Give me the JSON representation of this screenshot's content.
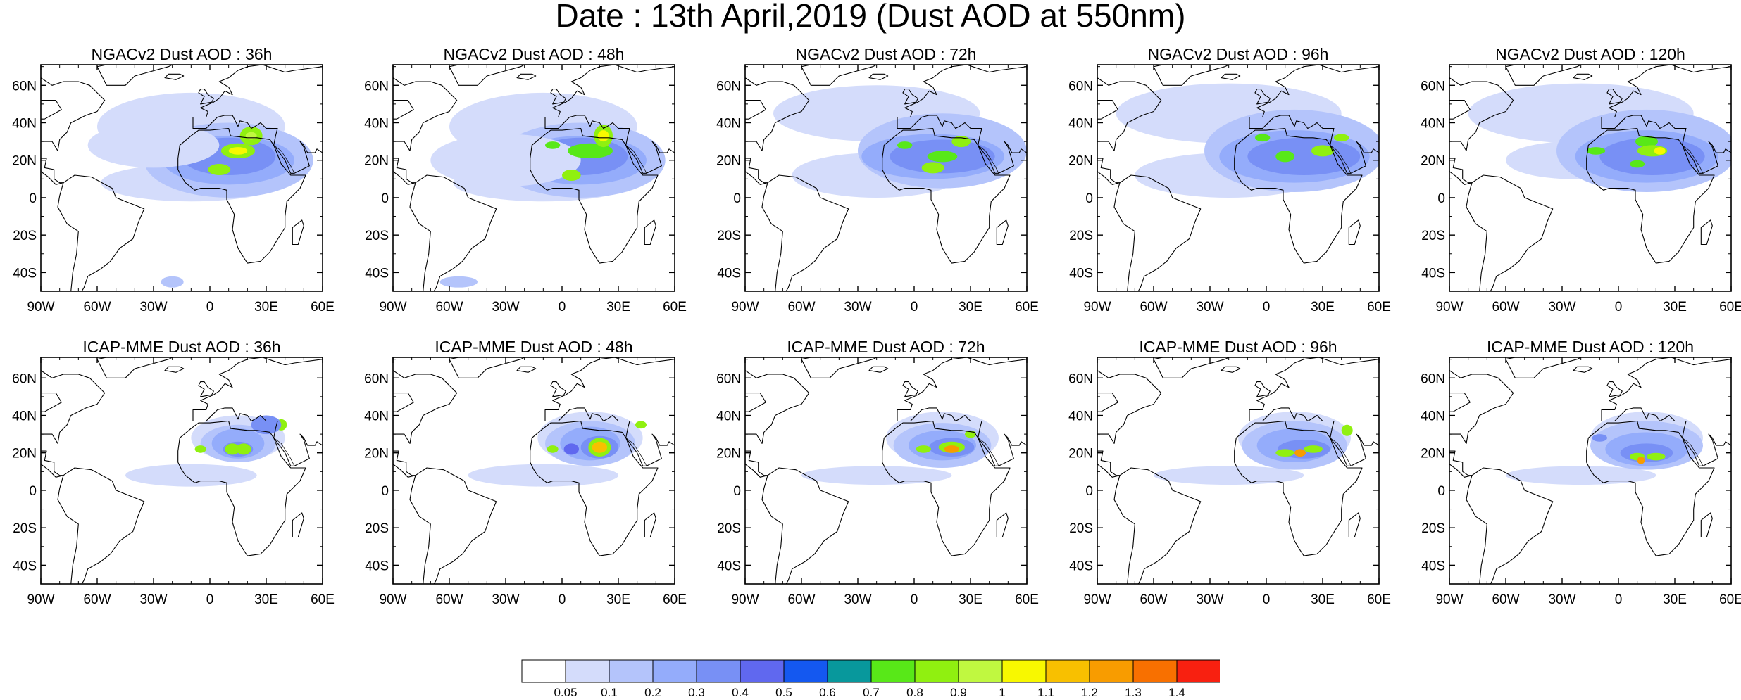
{
  "title": "Date : 13th April,2019 (Dust AOD at 550nm)",
  "map": {
    "lat_labels": [
      "60N",
      "40N",
      "20N",
      "0",
      "20S",
      "40S"
    ],
    "lat_values": [
      60,
      40,
      20,
      0,
      -20,
      -40
    ],
    "lon_labels": [
      "90W",
      "60W",
      "30W",
      "0",
      "30E",
      "60E"
    ],
    "lon_values": [
      -90,
      -60,
      -30,
      0,
      30,
      60
    ],
    "lon_range": [
      -90,
      60
    ],
    "lat_range": [
      -50,
      71
    ]
  },
  "panels": [
    {
      "title": "NGACv2 Dust AOD : 36h",
      "row": 0,
      "col": 0
    },
    {
      "title": "NGACv2 Dust AOD : 48h",
      "row": 0,
      "col": 1
    },
    {
      "title": "NGACv2 Dust AOD : 72h",
      "row": 0,
      "col": 2
    },
    {
      "title": "NGACv2 Dust AOD : 96h",
      "row": 0,
      "col": 3
    },
    {
      "title": "NGACv2 Dust AOD : 120h",
      "row": 0,
      "col": 4
    },
    {
      "title": "ICAP-MME Dust AOD : 36h",
      "row": 1,
      "col": 0
    },
    {
      "title": "ICAP-MME Dust AOD : 48h",
      "row": 1,
      "col": 1
    },
    {
      "title": "ICAP-MME Dust AOD : 72h",
      "row": 1,
      "col": 2
    },
    {
      "title": "ICAP-MME Dust AOD : 96h",
      "row": 1,
      "col": 3
    },
    {
      "title": "ICAP-MME Dust AOD : 120h",
      "row": 1,
      "col": 4
    }
  ],
  "colorbar": {
    "labels": [
      "0.05",
      "0.1",
      "0.2",
      "0.3",
      "0.4",
      "0.5",
      "0.6",
      "0.7",
      "0.8",
      "0.9",
      "1",
      "1.1",
      "1.2",
      "1.3",
      "1.4"
    ],
    "colors": [
      "#ffffff",
      "#d4dcfb",
      "#b4c4fb",
      "#94acfb",
      "#7890f5",
      "#6068ef",
      "#1458f0",
      "#08989c",
      "#58e818",
      "#90f010",
      "#c0f840",
      "#f8f800",
      "#f8c000",
      "#f89c00",
      "#f87000",
      "#f82010"
    ]
  }
}
